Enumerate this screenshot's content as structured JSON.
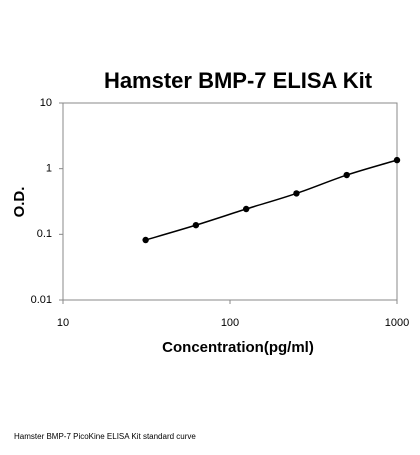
{
  "chart_data": {
    "type": "scatter",
    "title": "Hamster BMP-7 ELISA Kit",
    "x_label": "Concentration(pg/ml)",
    "y_label": "O.D.",
    "caption": "Hamster BMP-7 PicoKine ELISA Kit standard curve",
    "x": [
      31.25,
      62.5,
      125,
      250,
      500,
      1000
    ],
    "series": [
      {
        "color": "#000000",
        "values": [
          0.082,
          0.138,
          0.243,
          0.42,
          0.8,
          1.35
        ]
      }
    ],
    "xlim": [
      10,
      1000
    ],
    "ylim": [
      0.01,
      10
    ],
    "xticks": [
      10,
      100,
      1000
    ],
    "yticks": [
      0.01,
      0.1,
      1,
      10
    ],
    "log_x": true,
    "log_y": true,
    "connect_points": true,
    "grid": false
  }
}
